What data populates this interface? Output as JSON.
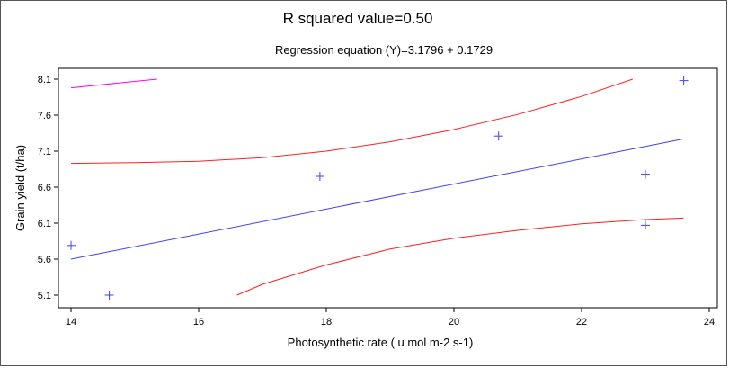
{
  "chart_data": {
    "type": "scatter",
    "title": "R squared value=0.50",
    "subtitle": "Regression equation (Y)=3.1796 + 0.1729",
    "xlabel": "Photosynthetic rate ( u mol m-2 s-1)",
    "ylabel": "Grain yield (t/ha)",
    "xlim": [
      14,
      24
    ],
    "ylim": [
      5.1,
      8.1
    ],
    "xticks": [
      "14",
      "16",
      "18",
      "20",
      "22",
      "24"
    ],
    "yticks": [
      "5.1",
      "5.6",
      "6.1",
      "6.6",
      "7.1",
      "7.6",
      "8.1"
    ],
    "grid": false,
    "points": [
      {
        "x": 14.0,
        "y": 5.79
      },
      {
        "x": 14.6,
        "y": 5.1
      },
      {
        "x": 17.9,
        "y": 6.75
      },
      {
        "x": 20.7,
        "y": 7.31
      },
      {
        "x": 23.0,
        "y": 6.78
      },
      {
        "x": 23.0,
        "y": 6.07
      },
      {
        "x": 23.6,
        "y": 8.08
      }
    ],
    "regression_line": {
      "color": "#4040ff",
      "points": [
        {
          "x": 14.0,
          "y": 5.6
        },
        {
          "x": 23.6,
          "y": 7.27
        }
      ]
    },
    "upper_band": {
      "color": "#ff2020",
      "points": [
        {
          "x": 14.0,
          "y": 6.93
        },
        {
          "x": 15.0,
          "y": 6.94
        },
        {
          "x": 16.0,
          "y": 6.96
        },
        {
          "x": 17.0,
          "y": 7.01
        },
        {
          "x": 18.0,
          "y": 7.1
        },
        {
          "x": 19.0,
          "y": 7.23
        },
        {
          "x": 20.0,
          "y": 7.4
        },
        {
          "x": 21.0,
          "y": 7.61
        },
        {
          "x": 22.0,
          "y": 7.86
        },
        {
          "x": 22.8,
          "y": 8.1
        }
      ]
    },
    "lower_band": {
      "color": "#ff2020",
      "points": [
        {
          "x": 16.6,
          "y": 5.1
        },
        {
          "x": 17.0,
          "y": 5.25
        },
        {
          "x": 18.0,
          "y": 5.52
        },
        {
          "x": 19.0,
          "y": 5.74
        },
        {
          "x": 20.0,
          "y": 5.89
        },
        {
          "x": 21.0,
          "y": 6.0
        },
        {
          "x": 22.0,
          "y": 6.09
        },
        {
          "x": 23.0,
          "y": 6.15
        },
        {
          "x": 23.6,
          "y": 6.17
        }
      ]
    },
    "extra_line": {
      "color": "#ff00ff",
      "points": [
        {
          "x": 14.0,
          "y": 7.98
        },
        {
          "x": 15.35,
          "y": 8.1
        }
      ]
    },
    "point_color": "#4040ff"
  }
}
